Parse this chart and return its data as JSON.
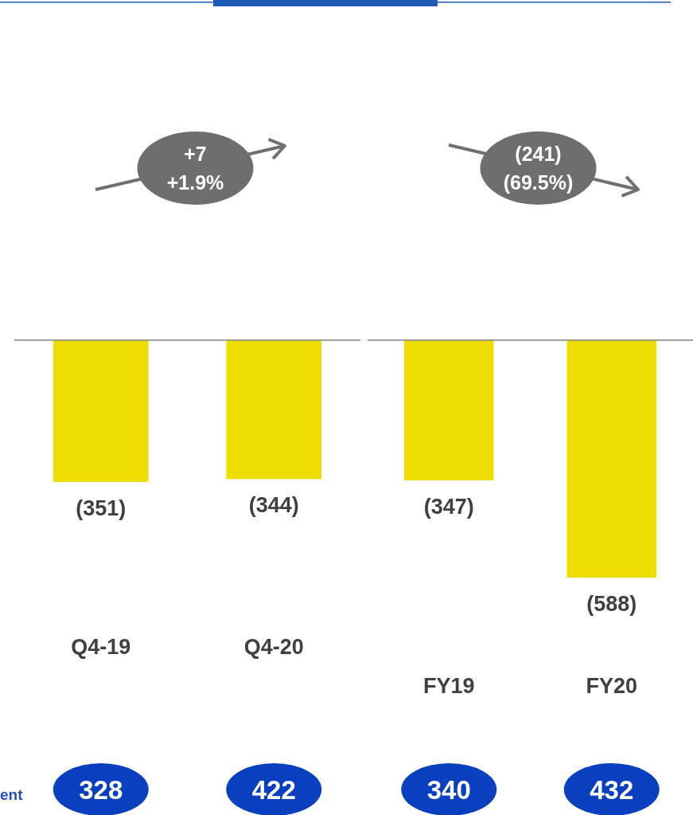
{
  "chart_data": [
    {
      "type": "bar",
      "categories": [
        "Q4-19",
        "Q4-20"
      ],
      "values": [
        -351,
        -344
      ],
      "color": "#eedd00",
      "value_labels": [
        "(351)",
        "(344)"
      ],
      "annotations": [
        "+7\n+1.9%",
        "328",
        "422",
        "ent"
      ]
    },
    {
      "type": "bar",
      "categories": [
        "FY19",
        "FY20"
      ],
      "values": [
        -347,
        -588
      ],
      "color": "#eedd00",
      "value_labels": [
        "(347)",
        "(588)"
      ],
      "annotations": [
        "(241)\n(69.5%)",
        "340",
        "432"
      ]
    }
  ]
}
